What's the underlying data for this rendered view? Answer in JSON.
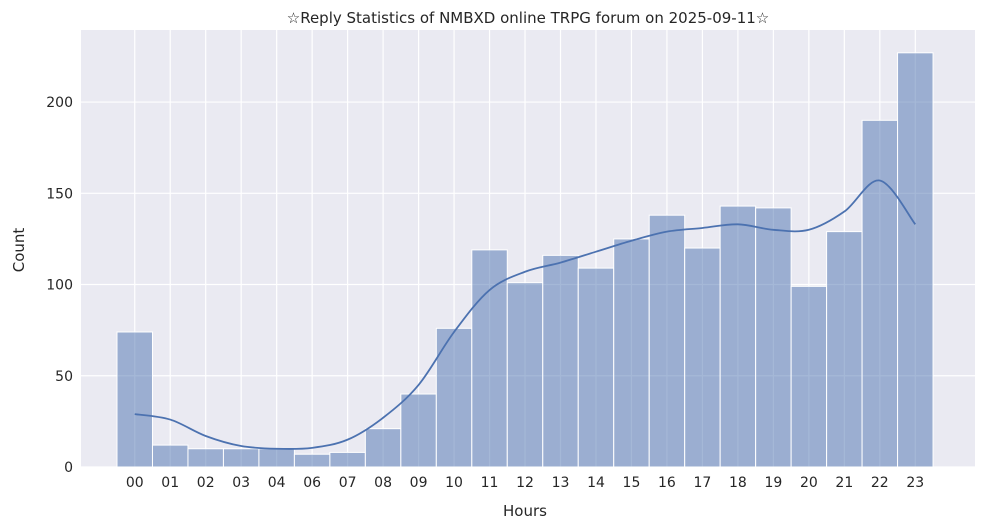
{
  "chart_data": {
    "type": "bar",
    "title": "☆Reply Statistics of NMBXD online TRPG forum on 2025-09-11☆",
    "xlabel": "Hours",
    "ylabel": "Count",
    "categories": [
      "00",
      "01",
      "02",
      "03",
      "04",
      "06",
      "07",
      "08",
      "09",
      "10",
      "11",
      "12",
      "13",
      "14",
      "15",
      "16",
      "17",
      "18",
      "19",
      "20",
      "21",
      "22",
      "23"
    ],
    "values": [
      74,
      12,
      10,
      10,
      10,
      7,
      8,
      21,
      40,
      76,
      119,
      101,
      116,
      109,
      125,
      138,
      120,
      143,
      142,
      99,
      129,
      190,
      227
    ],
    "kde": [
      29,
      26,
      17,
      11.5,
      10,
      10.5,
      15,
      27,
      45,
      74,
      97,
      107,
      112,
      118,
      124,
      129,
      131,
      133,
      130,
      130,
      140,
      157,
      133
    ],
    "ylim": [
      0,
      239.5
    ],
    "yticks": [
      0,
      50,
      100,
      150,
      200
    ],
    "grid": true,
    "colors": {
      "bar": "#4c72b0",
      "line": "#4c72b0",
      "bg": "#eaeaf2"
    }
  }
}
